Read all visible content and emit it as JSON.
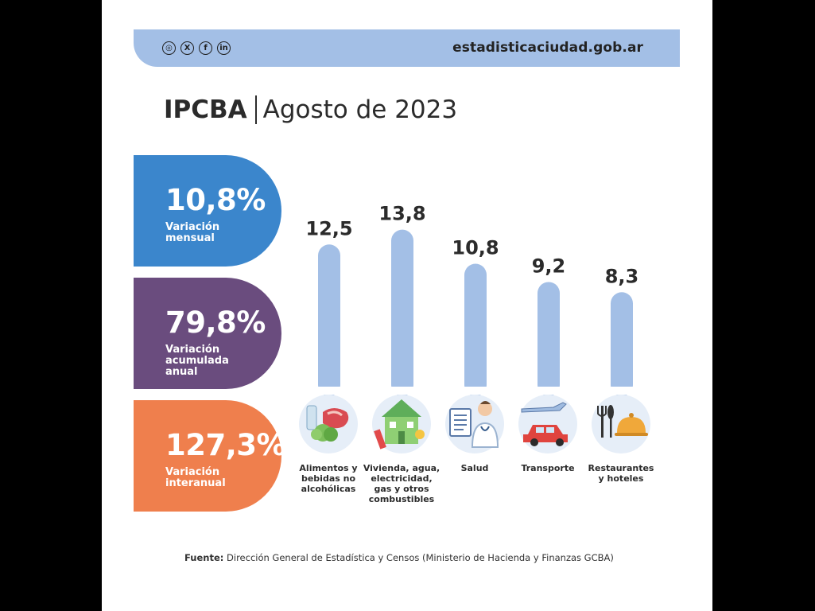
{
  "header": {
    "social_icons": [
      "instagram-icon",
      "x-icon",
      "facebook-icon",
      "linkedin-icon"
    ],
    "social_glyphs": [
      "◎",
      "X",
      "f",
      "in"
    ],
    "site_url": "estadisticaciudad.gob.ar"
  },
  "title": {
    "strong": "IPCBA",
    "rest": "Agosto de 2023"
  },
  "stats": [
    {
      "value": "10,8%",
      "label": "Variación\nmensual",
      "color": "#3b86cc"
    },
    {
      "value": "79,8%",
      "label": "Variación\nacumulada\nanual",
      "color": "#6a4c7e"
    },
    {
      "value": "127,3%",
      "label": "Variación\ninteranual",
      "color": "#ef7f4d"
    }
  ],
  "chart_data": {
    "type": "bar",
    "categories": [
      "Alimentos y\nbebidas no\nalcohólicas",
      "Vivienda, agua,\nelectricidad,\ngas y otros\ncombustibles",
      "Salud",
      "Transporte",
      "Restaurantes\ny hoteles"
    ],
    "values": [
      12.5,
      13.8,
      10.8,
      9.2,
      8.3
    ],
    "value_labels": [
      "12,5",
      "13,8",
      "10,8",
      "9,2",
      "8,3"
    ],
    "category_icons": [
      "food-icon",
      "house-icon",
      "doctor-icon",
      "car-plane-icon",
      "restaurant-cloche-icon"
    ],
    "bar_color": "#a3bfe6"
  },
  "footer": {
    "source_label": "Fuente:",
    "source_text": "Dirección General de Estadística y Censos (Ministerio de Hacienda y Finanzas GCBA)"
  }
}
